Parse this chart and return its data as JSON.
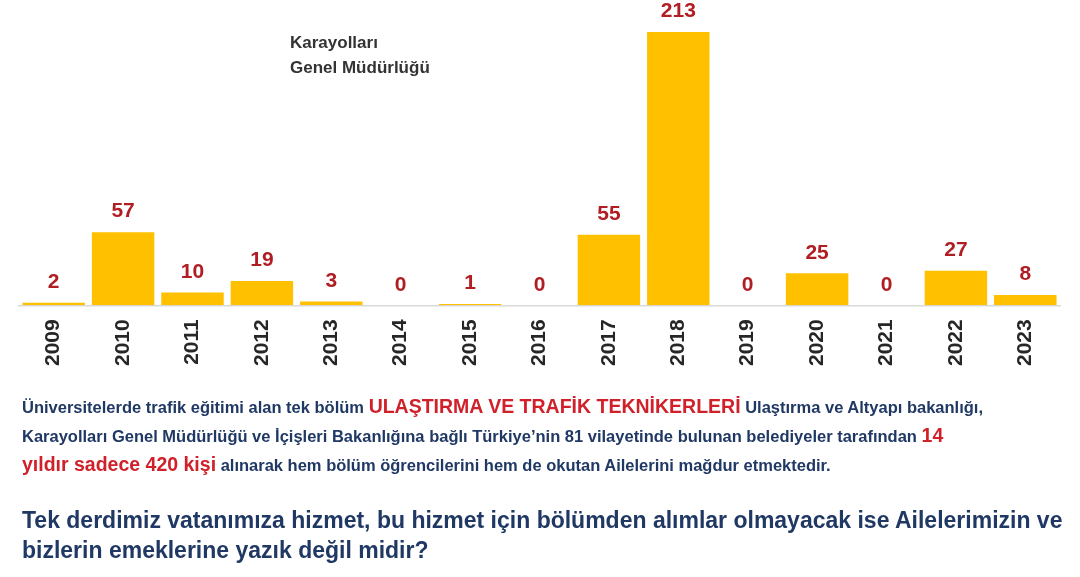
{
  "chart_data": {
    "type": "bar",
    "title": "Karayolları Genel Müdürlüğü",
    "categories": [
      "2009",
      "2010",
      "2011",
      "2012",
      "2013",
      "2014",
      "2015",
      "2016",
      "2017",
      "2018",
      "2019",
      "2020",
      "2021",
      "2022",
      "2023"
    ],
    "values": [
      2,
      57,
      10,
      19,
      3,
      0,
      1,
      0,
      55,
      213,
      0,
      25,
      0,
      27,
      8
    ],
    "color": "#ffc000",
    "data_labels": true,
    "annotations": [
      "Üniversitelerde trafik eğitimi alan tek bölüm",
      "ULAŞTIRMA VE TRAFİK TEKNİKERLERİ",
      "Ulaştırma ve Altyapı bakanlığı,",
      "Karayolları Genel Müdürlüğü ve İçişleri Bakanlığına bağlı Türkiye’nin 81 vilayetinde bulunan belediyeler tarafından",
      "14",
      "yıldır sadece 420 kişi",
      "alınarak hem bölüm öğrencilerini hem de okutan Ailelerini mağdur etmektedir.",
      "Tek derdimiz vatanımıza hizmet, bu hizmet için bölümden alımlar olmayacak ise Ailelerimizin ve bizlerin emeklerine yazık değil midir?"
    ]
  }
}
